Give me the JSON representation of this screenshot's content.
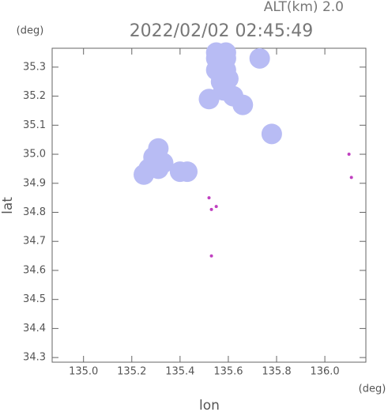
{
  "chart_data": {
    "type": "scatter",
    "title": "2022/02/02 02:45:49",
    "subtitle": "ALT(km) 2.0",
    "x_label": "lon",
    "y_label": "lat",
    "x_unit": "(deg)",
    "y_unit": "(deg)",
    "xlim": [
      134.87,
      136.17
    ],
    "ylim": [
      34.284,
      35.365
    ],
    "xticks": [
      {
        "value": 135.0,
        "label": "135.0"
      },
      {
        "value": 135.2,
        "label": "135.2"
      },
      {
        "value": 135.4,
        "label": "135.4"
      },
      {
        "value": 135.6,
        "label": "135.6"
      },
      {
        "value": 135.8,
        "label": "135.8"
      },
      {
        "value": 136.0,
        "label": "136.0"
      }
    ],
    "yticks": [
      {
        "value": 34.3,
        "label": "34.3"
      },
      {
        "value": 34.4,
        "label": "34.4"
      },
      {
        "value": 34.5,
        "label": "34.5"
      },
      {
        "value": 34.6,
        "label": "34.6"
      },
      {
        "value": 34.7,
        "label": "34.7"
      },
      {
        "value": 34.8,
        "label": "34.8"
      },
      {
        "value": 34.9,
        "label": "34.9"
      },
      {
        "value": 35.0,
        "label": "35.0"
      },
      {
        "value": 35.1,
        "label": "35.1"
      },
      {
        "value": 35.2,
        "label": "35.2"
      },
      {
        "value": 35.3,
        "label": "35.3"
      }
    ],
    "series": [
      {
        "color": "#b8bcf4",
        "x": [
          135.55,
          135.59,
          135.55,
          135.59,
          135.57,
          135.6,
          135.55,
          135.59,
          135.58,
          135.62,
          135.27,
          135.31,
          135.29,
          135.31,
          135.25,
          135.33,
          135.4,
          135.43,
          135.66,
          135.73,
          135.78,
          135.52
        ],
        "y": [
          35.33,
          35.33,
          35.29,
          35.29,
          35.25,
          35.26,
          35.35,
          35.35,
          35.22,
          35.2,
          34.95,
          34.95,
          34.99,
          35.02,
          34.93,
          34.97,
          34.94,
          34.94,
          35.17,
          35.33,
          35.07,
          35.19
        ]
      },
      {
        "color": "#c040c0",
        "x": [
          135.52,
          135.53,
          135.55,
          135.53,
          136.1,
          136.11
        ],
        "y": [
          34.85,
          34.81,
          34.82,
          34.65,
          35.0,
          34.92
        ]
      }
    ]
  }
}
